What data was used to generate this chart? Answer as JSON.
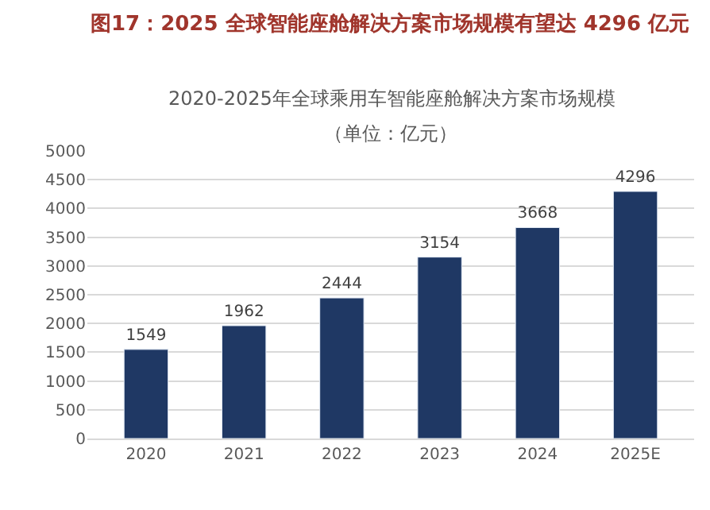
{
  "chart_data": {
    "type": "bar",
    "title": "图17：2025 全球智能座舱解决方案市场规模有望达 4296 亿元",
    "subtitle": "2020-2025年全球乘用车智能座舱解决方案市场规模",
    "annotations": [
      "（单位：亿元）"
    ],
    "categories": [
      "2020",
      "2021",
      "2022",
      "2023",
      "2024",
      "2025E"
    ],
    "values": [
      1549,
      1962,
      2444,
      3154,
      3668,
      4296
    ],
    "color": "#1f3864",
    "ylim": [
      0,
      5000
    ],
    "yticks": [
      0,
      500,
      1000,
      1500,
      2000,
      2500,
      3000,
      3500,
      4000,
      4500,
      5000
    ],
    "grid": "y",
    "data_labels": true,
    "legend": false
  }
}
